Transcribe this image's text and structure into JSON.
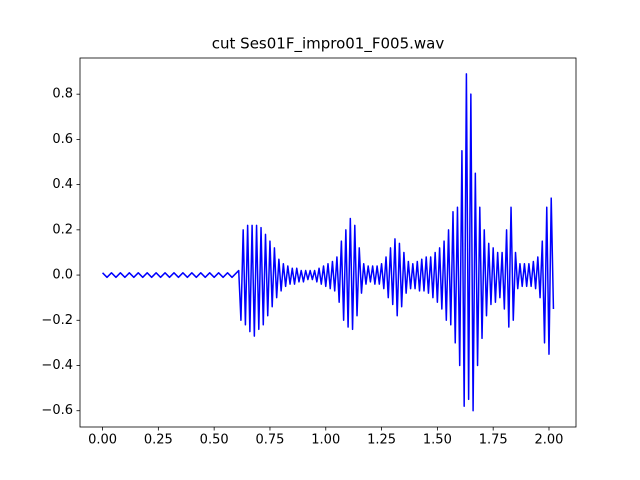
{
  "chart_data": {
    "type": "line",
    "title": "cut Ses01F_impro01_F005.wav",
    "x": [
      0,
      0.02,
      0.04,
      0.06,
      0.08,
      0.1,
      0.12,
      0.14,
      0.16,
      0.18,
      0.2,
      0.22,
      0.24,
      0.26,
      0.28,
      0.3,
      0.32,
      0.34,
      0.36,
      0.38,
      0.4,
      0.42,
      0.44,
      0.46,
      0.48,
      0.5,
      0.52,
      0.54,
      0.56,
      0.58,
      0.6,
      0.61,
      0.62,
      0.63,
      0.64,
      0.65,
      0.66,
      0.67,
      0.68,
      0.69,
      0.7,
      0.71,
      0.72,
      0.73,
      0.74,
      0.75,
      0.76,
      0.77,
      0.78,
      0.79,
      0.8,
      0.81,
      0.82,
      0.83,
      0.84,
      0.85,
      0.86,
      0.87,
      0.88,
      0.89,
      0.9,
      0.91,
      0.92,
      0.93,
      0.94,
      0.95,
      0.96,
      0.97,
      0.98,
      0.99,
      1.0,
      1.01,
      1.02,
      1.03,
      1.04,
      1.05,
      1.06,
      1.07,
      1.08,
      1.09,
      1.1,
      1.11,
      1.12,
      1.13,
      1.14,
      1.15,
      1.16,
      1.17,
      1.18,
      1.19,
      1.2,
      1.21,
      1.22,
      1.23,
      1.24,
      1.25,
      1.26,
      1.27,
      1.28,
      1.29,
      1.3,
      1.31,
      1.32,
      1.33,
      1.34,
      1.35,
      1.36,
      1.37,
      1.38,
      1.39,
      1.4,
      1.41,
      1.42,
      1.43,
      1.44,
      1.45,
      1.46,
      1.47,
      1.48,
      1.49,
      1.5,
      1.51,
      1.52,
      1.53,
      1.54,
      1.55,
      1.56,
      1.57,
      1.58,
      1.59,
      1.6,
      1.61,
      1.62,
      1.63,
      1.64,
      1.65,
      1.66,
      1.67,
      1.68,
      1.69,
      1.7,
      1.71,
      1.72,
      1.73,
      1.74,
      1.75,
      1.76,
      1.77,
      1.78,
      1.79,
      1.8,
      1.81,
      1.82,
      1.83,
      1.84,
      1.85,
      1.86,
      1.87,
      1.88,
      1.89,
      1.9,
      1.91,
      1.92,
      1.93,
      1.94,
      1.95,
      1.96,
      1.97,
      1.98,
      1.99,
      2.0,
      2.01,
      2.02
    ],
    "series": [
      {
        "color": "#0000ff",
        "values": [
          0.01,
          -0.01,
          0.01,
          -0.01,
          0.01,
          -0.01,
          0.01,
          -0.01,
          0.01,
          -0.01,
          0.01,
          -0.01,
          0.01,
          -0.01,
          0.01,
          -0.01,
          0.01,
          -0.01,
          0.01,
          -0.01,
          0.01,
          -0.01,
          0.01,
          -0.01,
          0.01,
          -0.01,
          0.01,
          -0.01,
          0.01,
          -0.01,
          0.01,
          0.02,
          -0.2,
          0.2,
          -0.22,
          0.22,
          -0.25,
          0.22,
          -0.27,
          0.22,
          -0.24,
          0.21,
          -0.22,
          0.18,
          -0.18,
          0.15,
          -0.14,
          0.12,
          -0.1,
          0.07,
          -0.07,
          0.05,
          -0.05,
          0.04,
          -0.04,
          0.03,
          -0.04,
          0.03,
          -0.03,
          0.02,
          -0.03,
          0.02,
          -0.02,
          0.02,
          -0.02,
          0.02,
          -0.03,
          0.03,
          -0.04,
          0.04,
          -0.05,
          0.05,
          -0.06,
          0.06,
          -0.07,
          0.08,
          -0.12,
          0.15,
          -0.2,
          0.2,
          -0.23,
          0.25,
          -0.24,
          0.22,
          -0.18,
          0.12,
          -0.08,
          0.05,
          -0.04,
          0.04,
          -0.03,
          0.04,
          -0.04,
          0.04,
          -0.04,
          0.05,
          -0.06,
          0.08,
          -0.1,
          0.12,
          -0.13,
          0.16,
          -0.18,
          0.14,
          -0.14,
          0.1,
          -0.08,
          0.06,
          -0.06,
          0.05,
          -0.06,
          0.06,
          -0.07,
          0.07,
          -0.07,
          0.08,
          -0.08,
          0.08,
          -0.1,
          0.1,
          -0.12,
          0.12,
          -0.15,
          0.15,
          -0.2,
          0.2,
          -0.22,
          0.28,
          -0.3,
          0.3,
          -0.4,
          0.55,
          -0.58,
          0.89,
          -0.55,
          0.8,
          -0.6,
          0.45,
          -0.4,
          0.3,
          -0.28,
          0.2,
          -0.18,
          0.14,
          -0.13,
          0.12,
          -0.12,
          0.1,
          -0.1,
          0.1,
          -0.15,
          0.2,
          -0.23,
          0.3,
          -0.2,
          0.1,
          -0.06,
          0.05,
          -0.05,
          0.05,
          -0.05,
          0.05,
          -0.05,
          0.06,
          -0.06,
          0.08,
          -0.1,
          0.15,
          -0.3,
          0.3,
          -0.35,
          0.34,
          -0.15
        ]
      }
    ],
    "xlim": [
      -0.101,
      2.121
    ],
    "xticks": [
      {
        "value": 0,
        "label": "0.00"
      },
      {
        "value": 0.25,
        "label": "0.25"
      },
      {
        "value": 0.5,
        "label": "0.50"
      },
      {
        "value": 0.75,
        "label": "0.75"
      },
      {
        "value": 1,
        "label": "1.00"
      },
      {
        "value": 1.25,
        "label": "1.25"
      },
      {
        "value": 1.5,
        "label": "1.50"
      },
      {
        "value": 1.75,
        "label": "1.75"
      },
      {
        "value": 2,
        "label": "2.00"
      }
    ],
    "ylim": [
      -0.672,
      0.96
    ],
    "yticks": [
      {
        "value": -0.6,
        "label": "−0.6"
      },
      {
        "value": -0.4,
        "label": "−0.4"
      },
      {
        "value": -0.2,
        "label": "−0.2"
      },
      {
        "value": 0,
        "label": "0.0"
      },
      {
        "value": 0.2,
        "label": "0.2"
      },
      {
        "value": 0.4,
        "label": "0.4"
      },
      {
        "value": 0.6,
        "label": "0.6"
      },
      {
        "value": 0.8,
        "label": "0.8"
      }
    ],
    "grid": false
  }
}
